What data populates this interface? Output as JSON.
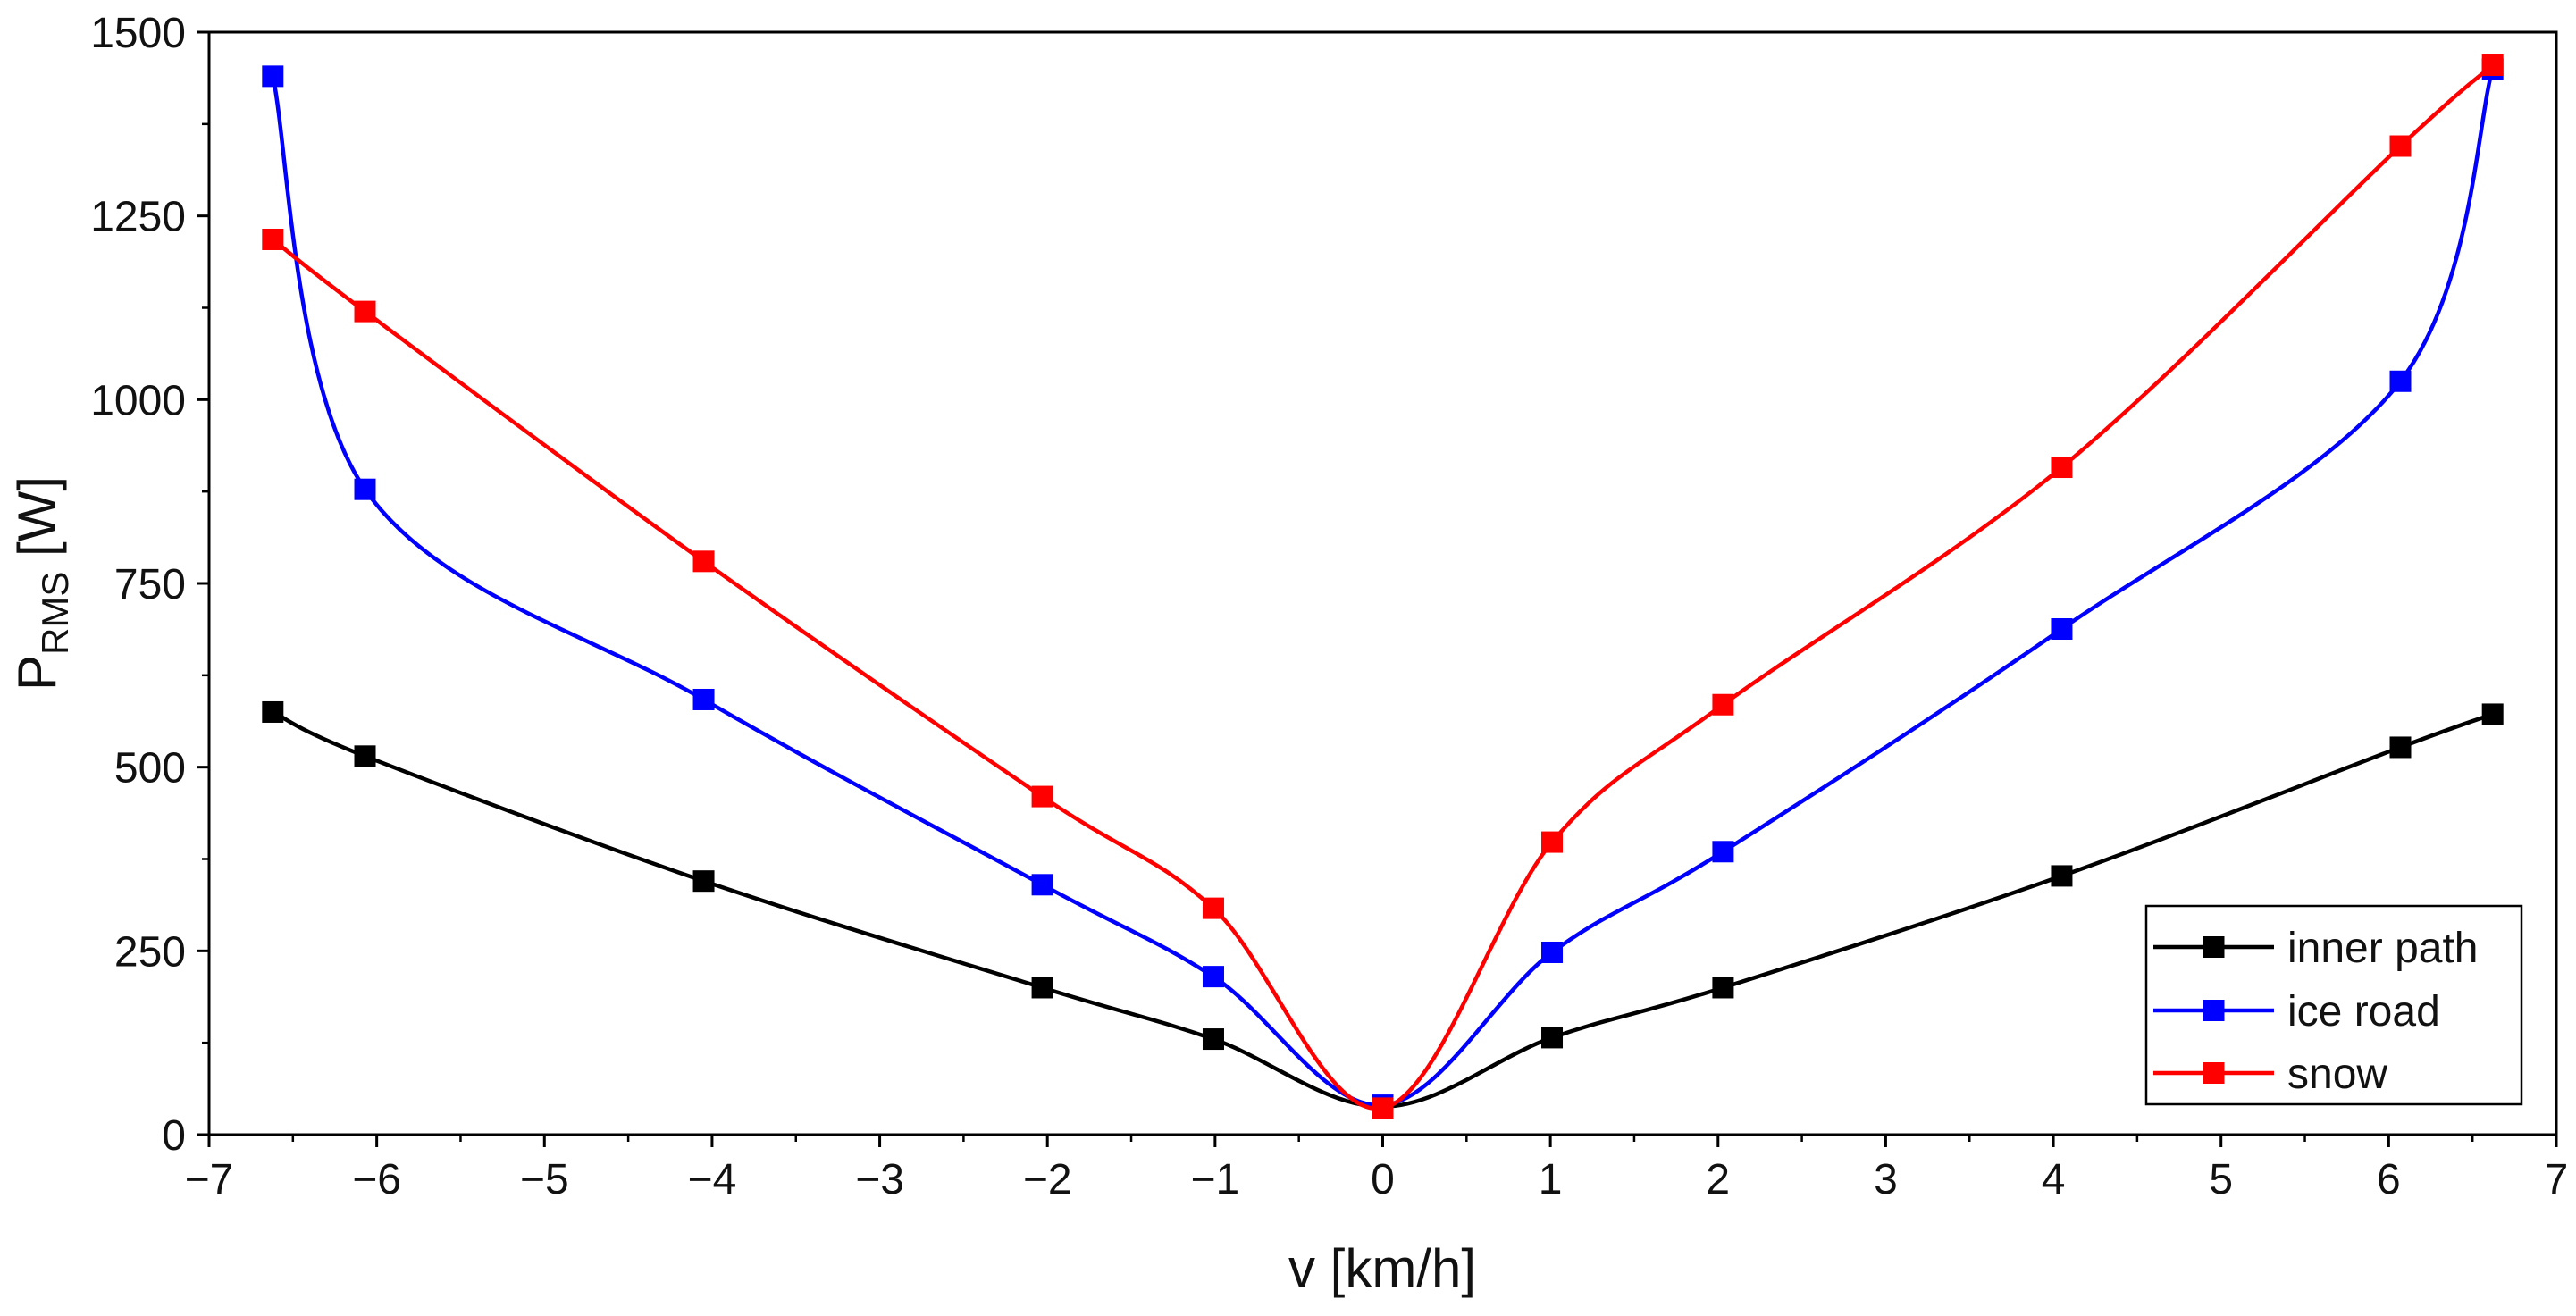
{
  "chart_data": {
    "type": "line",
    "title": "",
    "xlabel": "v [km/h]",
    "ylabel": {
      "main": "P",
      "subscript": "RMS",
      "unit": " [W]"
    },
    "xlim": [
      -7,
      7
    ],
    "ylim": [
      0,
      1500
    ],
    "x_ticks": [
      -7,
      -6,
      -5,
      -4,
      -3,
      -2,
      -1,
      0,
      1,
      2,
      3,
      4,
      5,
      6,
      7
    ],
    "x_tick_labels": [
      "−7",
      "−6",
      "−5",
      "−4",
      "−3",
      "−2",
      "−1",
      "0",
      "1",
      "2",
      "3",
      "4",
      "5",
      "6",
      "7"
    ],
    "y_ticks": [
      0,
      250,
      500,
      750,
      1000,
      1250,
      1500
    ],
    "y_tick_labels": [
      "0",
      "250",
      "500",
      "750",
      "1000",
      "1250",
      "1500"
    ],
    "grid": false,
    "legend_position": "bottom-right",
    "series": [
      {
        "name": "inner path",
        "color": "#000000",
        "x": [
          -6.62,
          -6.07,
          -4.05,
          -2.03,
          -1.01,
          0,
          1.01,
          2.03,
          4.05,
          6.07,
          6.62
        ],
        "y": [
          575,
          515,
          345,
          200,
          130,
          38,
          132,
          200,
          352,
          527,
          572
        ]
      },
      {
        "name": "ice road",
        "color": "#0000ff",
        "x": [
          -6.62,
          -6.07,
          -4.05,
          -2.03,
          -1.01,
          0,
          1.01,
          2.03,
          4.05,
          6.07,
          6.62
        ],
        "y": [
          1440,
          878,
          592,
          340,
          215,
          40,
          248,
          385,
          688,
          1025,
          1450
        ]
      },
      {
        "name": "snow",
        "color": "#ff0000",
        "x": [
          -6.62,
          -6.07,
          -4.05,
          -2.03,
          -1.01,
          0,
          1.01,
          2.03,
          4.05,
          6.07,
          6.62
        ],
        "y": [
          1218,
          1120,
          780,
          460,
          308,
          36,
          398,
          585,
          908,
          1345,
          1455
        ]
      }
    ]
  }
}
